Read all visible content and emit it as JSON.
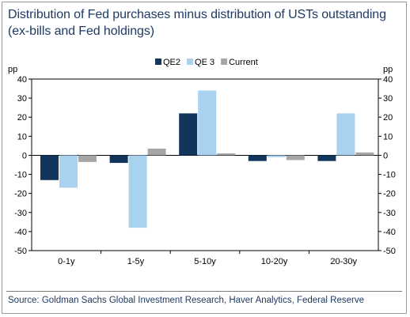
{
  "title_line1": "Distribution of Fed purchases minus distribution of USTs outstanding",
  "title_line2": "(ex-bills and Fed holdings)",
  "source": "Source: Goldman Sachs Global Investment Research, Haver Analytics, Federal Reserve",
  "colors": {
    "QE2": "#12355b",
    "QE 3": "#a9d2f0",
    "Current": "#a6a6a6",
    "title": "#1f3a63"
  },
  "chart_data": {
    "type": "bar",
    "categories": [
      "0-1y",
      "1-5y",
      "5-10y",
      "10-20y",
      "20-30y"
    ],
    "series": [
      {
        "name": "QE2",
        "values": [
          -13,
          -4,
          22,
          -3,
          -3
        ]
      },
      {
        "name": "QE 3",
        "values": [
          -17,
          -38,
          34,
          -1,
          22
        ]
      },
      {
        "name": "Current",
        "values": [
          -3.5,
          3.5,
          1,
          -2.5,
          1.5
        ]
      }
    ],
    "ylim": [
      -50,
      40
    ],
    "yticks": [
      -50,
      -40,
      -30,
      -20,
      -10,
      0,
      10,
      20,
      30,
      40
    ],
    "ylabel_left": "pp",
    "ylabel_right": "pp",
    "legend": "top-center",
    "grid": false
  }
}
